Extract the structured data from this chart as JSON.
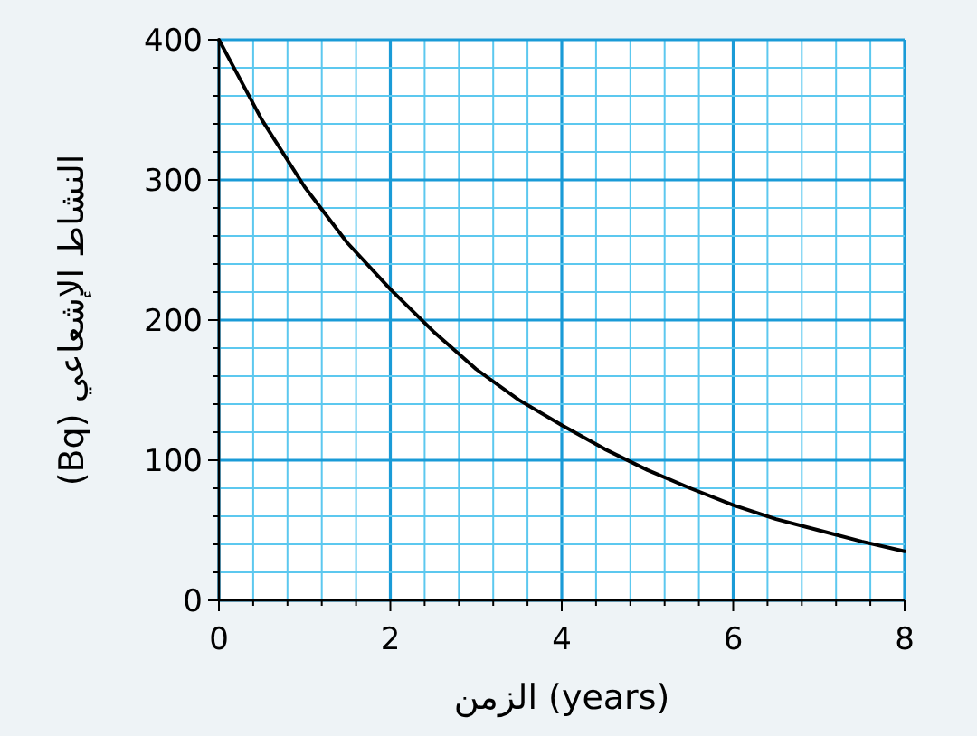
{
  "chart_data": {
    "type": "line",
    "xlabel": "الزمن (years)",
    "ylabel": "(Bq) النشاط الإشعاعي",
    "x": [
      0,
      0.5,
      1,
      1.5,
      2,
      2.5,
      3,
      3.5,
      4,
      4.5,
      5,
      5.5,
      6,
      6.5,
      7,
      7.5,
      8
    ],
    "series": [
      {
        "color": "#000000",
        "values": [
          400,
          343,
          295,
          255,
          222,
          192,
          165,
          143,
          125,
          108,
          93,
          80,
          68,
          58,
          50,
          42,
          35
        ]
      }
    ],
    "xlim": [
      0,
      8
    ],
    "xticks": [
      0,
      {
        "value": 0.4,
        "label": null
      },
      {
        "value": 0.8,
        "label": null
      },
      {
        "value": 1.2,
        "label": null
      },
      {
        "value": 1.6,
        "label": null
      },
      2,
      {
        "value": 2.4,
        "label": null
      },
      {
        "value": 2.8,
        "label": null
      },
      {
        "value": 3.2,
        "label": null
      },
      {
        "value": 3.6,
        "label": null
      },
      4,
      {
        "value": 4.4,
        "label": null
      },
      {
        "value": 4.8,
        "label": null
      },
      {
        "value": 5.2,
        "label": null
      },
      {
        "value": 5.6,
        "label": null
      },
      6,
      {
        "value": 6.4,
        "label": null
      },
      {
        "value": 6.8,
        "label": null
      },
      {
        "value": 7.2,
        "label": null
      },
      {
        "value": 7.6,
        "label": null
      },
      8
    ],
    "ylim": [
      0,
      400
    ],
    "yticks": [
      0,
      {
        "value": 20,
        "label": null
      },
      {
        "value": 40,
        "label": null
      },
      {
        "value": 60,
        "label": null
      },
      {
        "value": 80,
        "label": null
      },
      100,
      {
        "value": 120,
        "label": null
      },
      {
        "value": 140,
        "label": null
      },
      {
        "value": 160,
        "label": null
      },
      {
        "value": 180,
        "label": null
      },
      200,
      {
        "value": 220,
        "label": null
      },
      {
        "value": 240,
        "label": null
      },
      {
        "value": 260,
        "label": null
      },
      {
        "value": 280,
        "label": null
      },
      300,
      {
        "value": 320,
        "label": null
      },
      {
        "value": 340,
        "label": null
      },
      {
        "value": 360,
        "label": null
      },
      {
        "value": 380,
        "label": null
      },
      400
    ],
    "grid": true,
    "marker": "none",
    "line_style": "solid"
  }
}
